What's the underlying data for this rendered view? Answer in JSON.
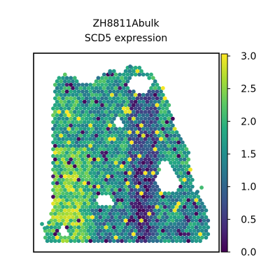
{
  "chart_data": {
    "type": "scatter",
    "subtype": "spatial-hex-spots",
    "title": [
      "ZH8811Abulk",
      "SCD5 expression"
    ],
    "xlabel": "",
    "ylabel": "",
    "axes_ticks": false,
    "grid": false,
    "legend": "none",
    "colormap": "viridis",
    "colorbar": {
      "location": "right",
      "range": [
        0.0,
        3.0
      ],
      "ticks": [
        0.0,
        0.5,
        1.0,
        1.5,
        2.0,
        2.5,
        3.0
      ],
      "tick_labels": [
        "0.0",
        "0.5",
        "1.0",
        "1.5",
        "2.0",
        "2.5",
        "3.0"
      ]
    },
    "value_range": [
      0.0,
      3.1
    ],
    "colors": {
      "viridis": [
        "#440154",
        "#472c7a",
        "#3b518b",
        "#2c718e",
        "#21908d",
        "#27ad81",
        "#5cc863",
        "#aadc32",
        "#fde725"
      ]
    }
  }
}
